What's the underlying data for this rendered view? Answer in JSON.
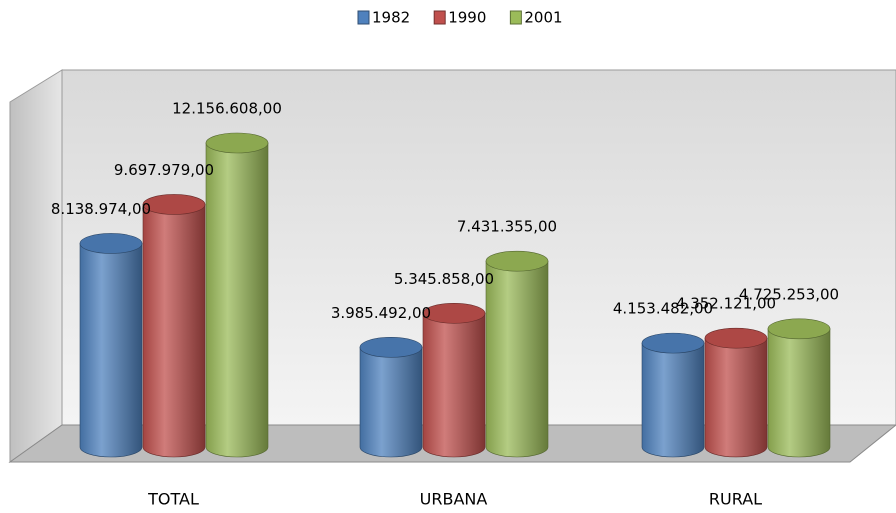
{
  "chart_data": {
    "type": "bar",
    "categories": [
      "TOTAL",
      "URBANA",
      "RURAL"
    ],
    "series": [
      {
        "name": "1982",
        "color": "#4f81bd",
        "values": [
          8138974,
          3985492,
          4153482
        ],
        "value_labels": [
          "8.138.974,00",
          "3.985.492,00",
          "4.153.482,00"
        ]
      },
      {
        "name": "1990",
        "color": "#c0504d",
        "values": [
          9697979,
          5345858,
          4352121
        ],
        "value_labels": [
          "9.697.979,00",
          "5.345.858,00",
          "4.352.121,00"
        ]
      },
      {
        "name": "2001",
        "color": "#9bbb59",
        "values": [
          12156608,
          7431355,
          4725253
        ],
        "value_labels": [
          "12.156.608,00",
          "7.431.355,00",
          "4.725.253,00"
        ]
      }
    ],
    "legend": "top"
  }
}
